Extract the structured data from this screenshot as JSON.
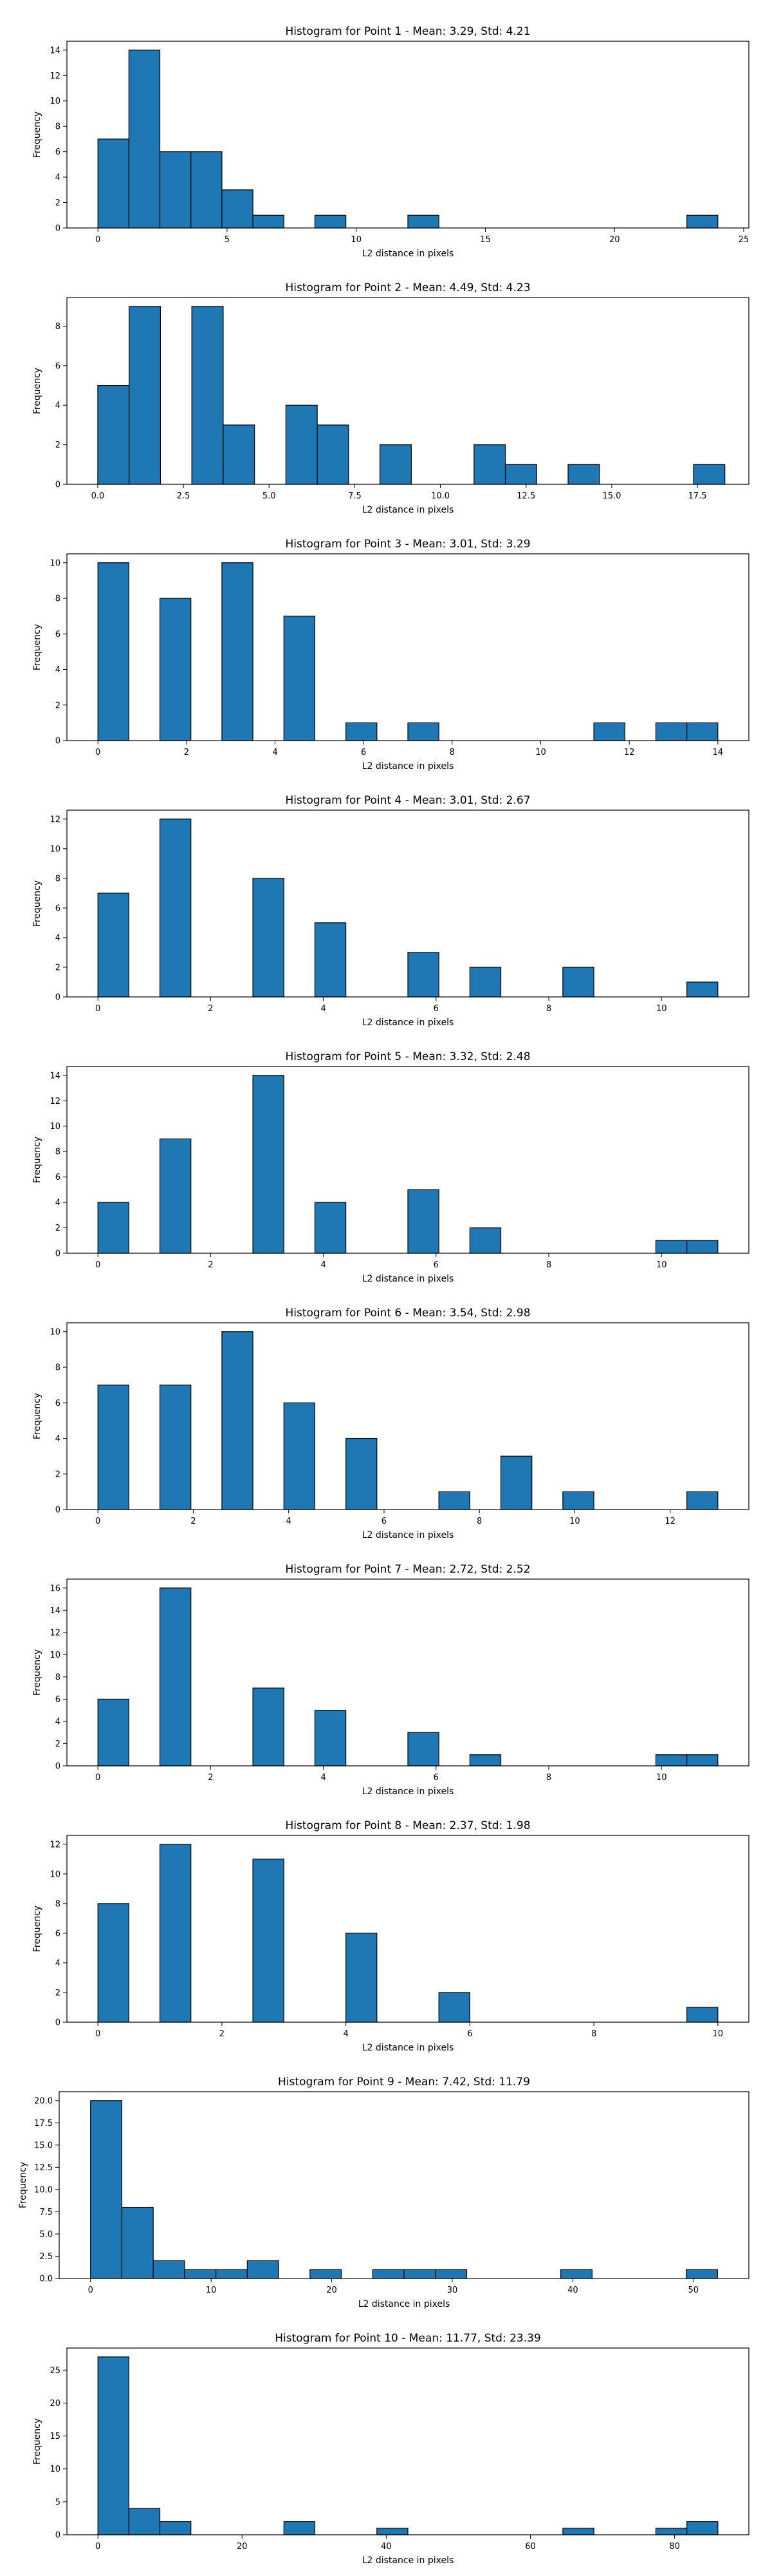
{
  "figure": {
    "background": "#ffffff",
    "bar_color": "#1f77b4",
    "edge_color": "#000000"
  },
  "chart_data": [
    {
      "type": "bar",
      "title": "Histogram for Point 1 - Mean: 3.29, Std: 4.21",
      "xlabel": "L2 distance in pixels",
      "ylabel": "Frequency",
      "xlim": [
        -1.2,
        25.2
      ],
      "ylim": [
        0,
        14.7
      ],
      "xticks": [
        0,
        5,
        10,
        15,
        20,
        25
      ],
      "xtick_labels": [
        "0",
        "5",
        "10",
        "15",
        "20",
        "25"
      ],
      "yticks": [
        0,
        2,
        4,
        6,
        8,
        10,
        12,
        14
      ],
      "ytick_labels": [
        "0",
        "2",
        "4",
        "6",
        "8",
        "10",
        "12",
        "14"
      ],
      "bin_start": 0,
      "bin_width": 1.2,
      "bins": 20,
      "values": [
        7,
        14,
        6,
        6,
        3,
        1,
        0,
        1,
        0,
        0,
        1,
        0,
        0,
        0,
        0,
        0,
        0,
        0,
        0,
        1
      ]
    },
    {
      "type": "bar",
      "title": "Histogram for Point 2 - Mean: 4.49, Std: 4.23",
      "xlabel": "L2 distance in pixels",
      "ylabel": "Frequency",
      "xlim": [
        -0.9,
        19.0
      ],
      "ylim": [
        0,
        9.45
      ],
      "xticks": [
        0,
        2.5,
        5,
        7.5,
        10,
        12.5,
        15,
        17.5
      ],
      "xtick_labels": [
        "0.0",
        "2.5",
        "5.0",
        "7.5",
        "10.0",
        "12.5",
        "15.0",
        "17.5"
      ],
      "yticks": [
        0,
        2,
        4,
        6,
        8
      ],
      "ytick_labels": [
        "0",
        "2",
        "4",
        "6",
        "8"
      ],
      "bin_start": 0,
      "bin_width": 0.915,
      "bins": 20,
      "values": [
        5,
        9,
        0,
        9,
        3,
        0,
        4,
        3,
        0,
        2,
        0,
        0,
        2,
        1,
        0,
        1,
        0,
        0,
        0,
        1
      ]
    },
    {
      "type": "bar",
      "title": "Histogram for Point 3 - Mean: 3.01, Std: 3.29",
      "xlabel": "L2 distance in pixels",
      "ylabel": "Frequency",
      "xlim": [
        -0.7,
        14.7
      ],
      "ylim": [
        0,
        10.5
      ],
      "xticks": [
        0,
        2,
        4,
        6,
        8,
        10,
        12,
        14
      ],
      "xtick_labels": [
        "0",
        "2",
        "4",
        "6",
        "8",
        "10",
        "12",
        "14"
      ],
      "yticks": [
        0,
        2,
        4,
        6,
        8,
        10
      ],
      "ytick_labels": [
        "0",
        "2",
        "4",
        "6",
        "8",
        "10"
      ],
      "bin_start": 0,
      "bin_width": 0.7,
      "bins": 20,
      "values": [
        10,
        0,
        8,
        0,
        10,
        0,
        7,
        0,
        1,
        0,
        1,
        0,
        0,
        0,
        0,
        0,
        1,
        0,
        1,
        1
      ]
    },
    {
      "type": "bar",
      "title": "Histogram for Point 4 - Mean: 3.01, Std: 2.67",
      "xlabel": "L2 distance in pixels",
      "ylabel": "Frequency",
      "xlim": [
        -0.55,
        11.55
      ],
      "ylim": [
        0,
        12.6
      ],
      "xticks": [
        0,
        2,
        4,
        6,
        8,
        10
      ],
      "xtick_labels": [
        "0",
        "2",
        "4",
        "6",
        "8",
        "10"
      ],
      "yticks": [
        0,
        2,
        4,
        6,
        8,
        10,
        12
      ],
      "ytick_labels": [
        "0",
        "2",
        "4",
        "6",
        "8",
        "10",
        "12"
      ],
      "bin_start": 0,
      "bin_width": 0.55,
      "bins": 20,
      "values": [
        7,
        0,
        12,
        0,
        0,
        8,
        0,
        5,
        0,
        0,
        3,
        0,
        2,
        0,
        0,
        2,
        0,
        0,
        0,
        1
      ]
    },
    {
      "type": "bar",
      "title": "Histogram for Point 5 - Mean: 3.32, Std: 2.48",
      "xlabel": "L2 distance in pixels",
      "ylabel": "Frequency",
      "xlim": [
        -0.55,
        11.55
      ],
      "ylim": [
        0,
        14.7
      ],
      "xticks": [
        0,
        2,
        4,
        6,
        8,
        10
      ],
      "xtick_labels": [
        "0",
        "2",
        "4",
        "6",
        "8",
        "10"
      ],
      "yticks": [
        0,
        2,
        4,
        6,
        8,
        10,
        12,
        14
      ],
      "ytick_labels": [
        "0",
        "2",
        "4",
        "6",
        "8",
        "10",
        "12",
        "14"
      ],
      "bin_start": 0,
      "bin_width": 0.55,
      "bins": 20,
      "values": [
        4,
        0,
        9,
        0,
        0,
        14,
        0,
        4,
        0,
        0,
        5,
        0,
        2,
        0,
        0,
        0,
        0,
        0,
        1,
        1
      ]
    },
    {
      "type": "bar",
      "title": "Histogram for Point 6 - Mean: 3.54, Std: 2.98",
      "xlabel": "L2 distance in pixels",
      "ylabel": "Frequency",
      "xlim": [
        -0.65,
        13.65
      ],
      "ylim": [
        0,
        10.5
      ],
      "xticks": [
        0,
        2,
        4,
        6,
        8,
        10,
        12
      ],
      "xtick_labels": [
        "0",
        "2",
        "4",
        "6",
        "8",
        "10",
        "12"
      ],
      "yticks": [
        0,
        2,
        4,
        6,
        8,
        10
      ],
      "ytick_labels": [
        "0",
        "2",
        "4",
        "6",
        "8",
        "10"
      ],
      "bin_start": 0,
      "bin_width": 0.65,
      "bins": 20,
      "values": [
        7,
        0,
        7,
        0,
        10,
        0,
        6,
        0,
        4,
        0,
        0,
        1,
        0,
        3,
        0,
        1,
        0,
        0,
        0,
        1
      ]
    },
    {
      "type": "bar",
      "title": "Histogram for Point 7 - Mean: 2.72, Std: 2.52",
      "xlabel": "L2 distance in pixels",
      "ylabel": "Frequency",
      "xlim": [
        -0.55,
        11.55
      ],
      "ylim": [
        0,
        16.8
      ],
      "xticks": [
        0,
        2,
        4,
        6,
        8,
        10
      ],
      "xtick_labels": [
        "0",
        "2",
        "4",
        "6",
        "8",
        "10"
      ],
      "yticks": [
        0,
        2,
        4,
        6,
        8,
        10,
        12,
        14,
        16
      ],
      "ytick_labels": [
        "0",
        "2",
        "4",
        "6",
        "8",
        "10",
        "12",
        "14",
        "16"
      ],
      "bin_start": 0,
      "bin_width": 0.55,
      "bins": 20,
      "values": [
        6,
        0,
        16,
        0,
        0,
        7,
        0,
        5,
        0,
        0,
        3,
        0,
        1,
        0,
        0,
        0,
        0,
        0,
        1,
        1
      ]
    },
    {
      "type": "bar",
      "title": "Histogram for Point 8 - Mean: 2.37, Std: 1.98",
      "xlabel": "L2 distance in pixels",
      "ylabel": "Frequency",
      "xlim": [
        -0.5,
        10.5
      ],
      "ylim": [
        0,
        12.6
      ],
      "xticks": [
        0,
        2,
        4,
        6,
        8,
        10
      ],
      "xtick_labels": [
        "0",
        "2",
        "4",
        "6",
        "8",
        "10"
      ],
      "yticks": [
        0,
        2,
        4,
        6,
        8,
        10,
        12
      ],
      "ytick_labels": [
        "0",
        "2",
        "4",
        "6",
        "8",
        "10",
        "12"
      ],
      "bin_start": 0,
      "bin_width": 0.5,
      "bins": 20,
      "values": [
        8,
        0,
        12,
        0,
        0,
        11,
        0,
        0,
        6,
        0,
        0,
        2,
        0,
        0,
        0,
        0,
        0,
        0,
        0,
        1
      ]
    },
    {
      "type": "bar",
      "title": "Histogram for Point 9 - Mean: 7.42, Std: 11.79",
      "xlabel": "L2 distance in pixels",
      "ylabel": "Frequency",
      "xlim": [
        -2.6,
        54.6
      ],
      "ylim": [
        0,
        21
      ],
      "xticks": [
        0,
        10,
        20,
        30,
        40,
        50
      ],
      "xtick_labels": [
        "0",
        "10",
        "20",
        "30",
        "40",
        "50"
      ],
      "yticks": [
        0,
        2.5,
        5,
        7.5,
        10,
        12.5,
        15,
        17.5,
        20
      ],
      "ytick_labels": [
        "0.0",
        "2.5",
        "5.0",
        "7.5",
        "10.0",
        "12.5",
        "15.0",
        "17.5",
        "20.0"
      ],
      "bin_start": 0,
      "bin_width": 2.6,
      "bins": 20,
      "values": [
        20,
        8,
        2,
        1,
        1,
        2,
        0,
        1,
        0,
        1,
        1,
        1,
        0,
        0,
        0,
        1,
        0,
        0,
        0,
        1
      ]
    },
    {
      "type": "bar",
      "title": "Histogram for Point 10 - Mean: 11.77, Std: 23.39",
      "xlabel": "L2 distance in pixels",
      "ylabel": "Frequency",
      "xlim": [
        -4.3,
        90.3
      ],
      "ylim": [
        0,
        28.35
      ],
      "xticks": [
        0,
        20,
        40,
        60,
        80
      ],
      "xtick_labels": [
        "0",
        "20",
        "40",
        "60",
        "80"
      ],
      "yticks": [
        0,
        5,
        10,
        15,
        20,
        25
      ],
      "ytick_labels": [
        "0",
        "5",
        "10",
        "15",
        "20",
        "25"
      ],
      "bin_start": 0,
      "bin_width": 4.3,
      "bins": 20,
      "values": [
        27,
        4,
        2,
        0,
        0,
        0,
        2,
        0,
        0,
        1,
        0,
        0,
        0,
        0,
        0,
        1,
        0,
        0,
        1,
        2
      ]
    }
  ]
}
